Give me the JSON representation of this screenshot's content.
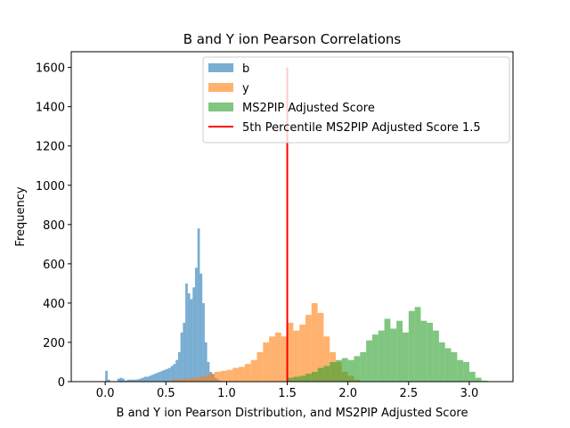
{
  "chart_data": {
    "type": "histogram",
    "title": "B and Y ion Pearson Correlations",
    "xlabel": "B and Y ion Pearson Distribution, and MS2PIP Adjusted Score",
    "ylabel": "Frequency",
    "xlim": [
      -0.28,
      3.36
    ],
    "ylim": [
      0,
      1680
    ],
    "xticks": [
      0.0,
      0.5,
      1.0,
      1.5,
      2.0,
      2.5,
      3.0
    ],
    "xtick_labels": [
      "0.0",
      "0.5",
      "1.0",
      "1.5",
      "2.0",
      "2.5",
      "3.0"
    ],
    "yticks": [
      0,
      200,
      400,
      600,
      800,
      1000,
      1200,
      1400,
      1600
    ],
    "ytick_labels": [
      "0",
      "200",
      "400",
      "600",
      "800",
      "1000",
      "1200",
      "1400",
      "1600"
    ],
    "legend_position": "top-right",
    "series": [
      {
        "name": "b",
        "color": "#1f77b4",
        "opacity": 0.6,
        "x_start": -0.14,
        "bin_width": 0.02,
        "values": [
          0,
          0,
          0,
          0,
          0,
          0,
          0,
          55,
          10,
          0,
          0,
          0,
          15,
          20,
          15,
          5,
          10,
          10,
          10,
          10,
          12,
          15,
          20,
          25,
          25,
          30,
          35,
          40,
          45,
          50,
          55,
          60,
          65,
          70,
          80,
          90,
          110,
          150,
          250,
          300,
          500,
          450,
          420,
          480,
          580,
          780,
          550,
          400,
          200,
          100,
          50,
          40,
          20,
          10,
          5
        ]
      },
      {
        "name": "y",
        "color": "#ff7f0e",
        "opacity": 0.6,
        "x_start": 0.55,
        "bin_width": 0.05,
        "values": [
          10,
          12,
          15,
          18,
          22,
          30,
          40,
          50,
          55,
          60,
          70,
          75,
          90,
          110,
          150,
          200,
          230,
          250,
          230,
          300,
          260,
          290,
          340,
          400,
          350,
          230,
          150,
          100,
          50,
          30,
          10
        ]
      },
      {
        "name": "MS2PIP Adjusted Score",
        "color": "#2ca02c",
        "opacity": 0.6,
        "x_start": 1.5,
        "bin_width": 0.05,
        "values": [
          20,
          25,
          30,
          40,
          50,
          70,
          80,
          100,
          110,
          120,
          110,
          130,
          150,
          210,
          240,
          260,
          320,
          270,
          310,
          250,
          360,
          380,
          310,
          300,
          260,
          200,
          170,
          150,
          110,
          100,
          50,
          20,
          5
        ]
      }
    ],
    "vline": {
      "name": "5th Percentile  MS2PIP Adjusted Score 1.5",
      "x": 1.5,
      "y_range": [
        0,
        1600
      ],
      "color": "#ff0000"
    }
  }
}
